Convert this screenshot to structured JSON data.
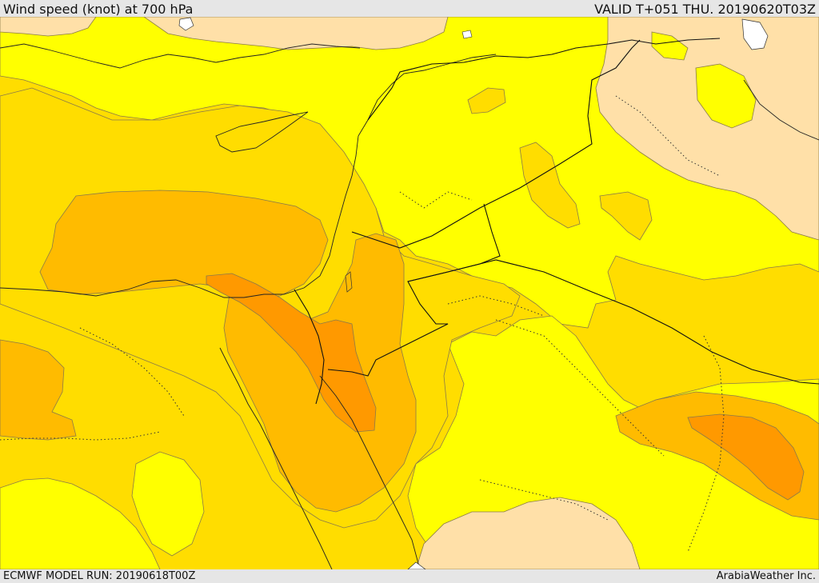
{
  "header": {
    "title": "Wind speed (knot) at 700 hPa",
    "valid": "VALID T+051 THU. 20190620T03Z"
  },
  "footer": {
    "model_run": "ECMWF MODEL RUN: 20190618T00Z",
    "credit": "ArabiaWeather Inc."
  },
  "colors": {
    "band_0_10": "#ffe0a8",
    "band_10_15": "#ffff00",
    "band_15_20": "#ffdd00",
    "band_20_25": "#ffbb00",
    "band_25_30": "#ff9900",
    "frame": "#e6e6e6"
  }
}
